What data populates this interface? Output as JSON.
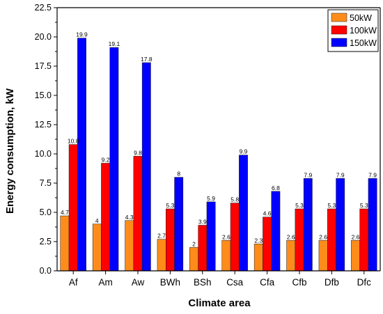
{
  "chart_data": {
    "type": "bar",
    "xlabel": "Climate area",
    "ylabel": "Energy consumption,  kW",
    "ylim": [
      0,
      22.5
    ],
    "yticks": [
      0.0,
      2.5,
      5.0,
      7.5,
      10.0,
      12.5,
      15.0,
      17.5,
      20.0,
      22.5
    ],
    "ytick_labels": [
      "0.0",
      "2.5",
      "5.0",
      "7.5",
      "10.0",
      "12.5",
      "15.0",
      "17.5",
      "20.0",
      "22.5"
    ],
    "categories": [
      "Af",
      "Am",
      "Aw",
      "BWh",
      "BSh",
      "Csa",
      "Cfa",
      "Cfb",
      "Dfb",
      "Dfc"
    ],
    "series": [
      {
        "name": "50kW",
        "color": "#ff8c1a",
        "values": [
          4.7,
          4,
          4.3,
          2.7,
          2,
          2.6,
          2.3,
          2.6,
          2.6,
          2.6
        ],
        "labels": [
          "4.7",
          "4",
          "4.3",
          "2.7",
          "2",
          "2.6",
          "2.3",
          "2.6",
          "2.6",
          "2.6"
        ]
      },
      {
        "name": "100kW",
        "color": "#ff0000",
        "values": [
          10.8,
          9.2,
          9.8,
          5.3,
          3.9,
          5.8,
          4.6,
          5.3,
          5.3,
          5.3
        ],
        "labels": [
          "10.8",
          "9.2",
          "9.8",
          "5.3",
          "3.9",
          "5.8",
          "4.6",
          "5.3",
          "5.3",
          "5.3"
        ]
      },
      {
        "name": "150kW",
        "color": "#0000ff",
        "values": [
          19.9,
          19.1,
          17.8,
          8,
          5.9,
          9.9,
          6.8,
          7.9,
          7.9,
          7.9
        ],
        "labels": [
          "19.9",
          "19.1",
          "17.8",
          "8",
          "5.9",
          "9.9",
          "6.8",
          "7.9",
          "7.9",
          "7.9"
        ]
      }
    ],
    "legend_position": "top-right",
    "grid": false
  }
}
